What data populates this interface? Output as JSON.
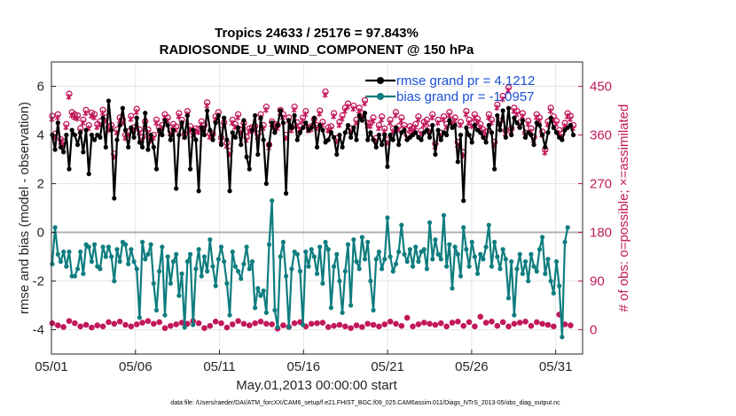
{
  "chart_data": {
    "type": "line",
    "title_line1": "Tropics 24633 / 25176 = 97.843%",
    "title_line2": "RADIOSONDE_U_WIND_COMPONENT @ 150 hPa",
    "xlabel": "May.01,2013 00:00:00 start",
    "ylabel_left": "rmse and bias (model - observation)",
    "ylabel_right": "# of obs: o=possible; ×=assimilated",
    "xlim": [
      0,
      31.6
    ],
    "ylim_left": [
      -5,
      7
    ],
    "ylim_right": [
      -45,
      495
    ],
    "x_tick_values": [
      0,
      5,
      10,
      15,
      20,
      25,
      30
    ],
    "x_tick_labels": [
      "05/01",
      "05/06",
      "05/11",
      "05/16",
      "05/21",
      "05/26",
      "05/31"
    ],
    "y_left_ticks": [
      -4,
      -2,
      0,
      2,
      4,
      6
    ],
    "y_right_ticks": [
      0,
      90,
      180,
      270,
      360,
      450
    ],
    "legend": {
      "rmse_label": "rmse grand pr = 4.1212",
      "bias_label": "bias grand pr = -1.0957"
    },
    "colors": {
      "rmse": "#000000",
      "bias": "#0f7d7f",
      "obs": "#c2185b",
      "zero_line": "#b0b0b0",
      "legend_text": "#1a4fd6"
    },
    "footnote": "data file: /Users/raeder/DAI/ATM_forcXX/CAM6_setup/f.e21.FHIST_BGC.f09_025.CAM6assim.011/Diags_NTrS_2013-05/obs_diag_output.nc",
    "rmse": [
      4.0,
      3.4,
      4.5,
      3.5,
      3.3,
      4.0,
      2.6,
      4.2,
      4.0,
      3.6,
      4.1,
      3.3,
      4.2,
      2.4,
      4.0,
      3.8,
      4.0,
      3.9,
      4.7,
      3.5,
      5.4,
      4.2,
      1.4,
      3.8,
      4.4,
      5.1,
      4.2,
      3.5,
      4.3,
      3.9,
      4.7,
      3.7,
      3.5,
      4.9,
      3.4,
      4.0,
      3.5,
      2.6,
      4.2,
      4.0,
      4.6,
      4.4,
      3.8,
      4.2,
      1.8,
      4.0,
      4.5,
      3.9,
      4.8,
      2.6,
      4.2,
      3.8,
      1.7,
      4.3,
      4.0,
      5.0,
      4.2,
      3.8,
      4.5,
      4.8,
      3.6,
      4.7,
      3.8,
      1.7,
      4.1,
      3.9,
      4.3,
      3.6,
      4.6,
      3.1,
      2.6,
      4.2,
      4.8,
      3.2,
      4.7,
      3.8,
      2.0,
      3.6,
      4.5,
      4.1,
      4.4,
      5.0,
      4.5,
      1.6,
      4.6,
      4.3,
      4.8,
      3.8,
      4.1,
      4.3,
      4.5,
      4.2,
      4.3,
      4.7,
      3.5,
      4.4,
      4.2,
      3.7,
      3.8,
      4.1,
      3.9,
      3.2,
      4.0,
      3.5,
      4.1,
      4.4,
      3.9,
      4.3,
      3.8,
      4.8,
      4.6,
      4.9,
      3.8,
      4.1,
      3.8,
      3.5,
      4.0,
      3.6,
      4.0,
      2.7,
      4.0,
      3.8,
      4.3,
      3.6,
      4.1,
      4.2,
      3.8,
      3.9,
      4.0,
      4.1,
      3.9,
      3.8,
      4.1,
      4.2,
      3.9,
      4.4,
      3.2,
      4.2,
      3.8,
      4.1,
      4.0,
      4.6,
      4.3,
      4.4,
      2.9,
      4.0,
      1.3,
      4.3,
      4.0,
      3.7,
      4.4,
      4.2,
      4.1,
      3.9,
      3.7,
      4.4,
      4.1,
      2.6,
      4.8,
      4.2,
      5.0,
      3.9,
      5.1,
      4.0,
      4.7,
      4.5,
      4.3,
      4.6,
      3.9,
      4.1,
      4.0,
      3.6,
      4.5,
      4.4,
      4.0,
      3.5,
      4.1,
      4.7,
      4.3,
      4.1,
      3.9,
      3.8,
      4.2,
      4.3,
      4.4,
      4.0
    ],
    "bias": [
      -1.3,
      0.2,
      -0.9,
      -1.2,
      -0.8,
      -1.4,
      -0.8,
      -1.8,
      -1.8,
      -1.5,
      -0.8,
      -1.7,
      -0.5,
      -0.6,
      -1.2,
      -0.5,
      -1.4,
      -1.5,
      -0.6,
      -1.0,
      -0.6,
      -1.0,
      -2.0,
      -0.7,
      -1.2,
      -0.4,
      -0.5,
      -1.3,
      -0.7,
      -1.2,
      -1.5,
      -3.5,
      -0.4,
      -1.1,
      -0.9,
      -0.5,
      -2.1,
      -3.2,
      -1.6,
      -0.6,
      -3.4,
      -1.0,
      -2.1,
      -1.2,
      -0.9,
      -2.6,
      -1.7,
      -3.9,
      -1.2,
      -0.9,
      -3.8,
      -1.5,
      -0.7,
      -1.8,
      -1.0,
      -1.6,
      -0.3,
      -1.4,
      -2.2,
      -1.1,
      -0.6,
      -1.2,
      -2.1,
      -3.4,
      -0.8,
      -1.4,
      -1.6,
      -1.9,
      -1.3,
      -0.6,
      -1.5,
      -1.2,
      -3.1,
      -2.3,
      -2.6,
      -2.4,
      -3.3,
      -0.5,
      1.3,
      -3.2,
      -3.9,
      -1.0,
      -0.4,
      -1.8,
      -3.9,
      -1.5,
      -0.8,
      -0.9,
      -1.6,
      -3.8,
      -0.8,
      -1.4,
      -0.7,
      -1.0,
      -1.7,
      -0.6,
      -2.1,
      -0.4,
      -0.7,
      -3.1,
      -1.4,
      -0.9,
      -2.0,
      -3.3,
      -1.6,
      -0.5,
      -3.0,
      -0.3,
      -1.2,
      -1.5,
      -0.2,
      -1.1,
      -0.4,
      -2.0,
      -3.2,
      -1.1,
      -0.8,
      -1.5,
      -1.1,
      0.6,
      -1.0,
      -1.6,
      -1.3,
      -0.8,
      0.3,
      -0.9,
      -1.2,
      -0.7,
      -1.4,
      -0.6,
      -1.2,
      -0.8,
      -0.7,
      -1.5,
      0.4,
      -1.1,
      -0.3,
      -0.9,
      -1.1,
      0.7,
      -1.4,
      -0.5,
      -2.3,
      -0.6,
      -0.9,
      -1.8,
      0.2,
      -0.7,
      -1.4,
      -0.4,
      -1.0,
      -1.7,
      -0.9,
      -1.1,
      -0.6,
      0.3,
      -1.4,
      -0.4,
      -1.0,
      -1.5,
      -0.7,
      -1.1,
      -2.7,
      -1.2,
      -3.4,
      -1.5,
      -0.9,
      -1.7,
      -1.2,
      -2.0,
      -0.9,
      -1.4,
      -1.6,
      -0.7,
      -0.2,
      -1.7,
      -1.1,
      -2.0,
      -2.5,
      -1.2,
      -2.2,
      -4.3,
      -0.4,
      0.2
    ],
    "obs_upper": [
      395,
      362,
      398,
      352,
      348,
      380,
      436,
      402,
      398,
      396,
      372,
      388,
      406,
      378,
      401,
      398,
      380,
      385,
      406,
      392,
      375,
      378,
      325,
      370,
      392,
      388,
      360,
      366,
      395,
      374,
      408,
      370,
      356,
      385,
      370,
      355,
      360,
      388,
      374,
      378,
      398,
      392,
      368,
      380,
      375,
      400,
      388,
      362,
      404,
      376,
      365,
      372,
      371,
      385,
      378,
      420,
      362,
      362,
      394,
      402,
      355,
      383,
      345,
      330,
      388,
      380,
      398,
      370,
      382,
      356,
      372,
      374,
      376,
      362,
      398,
      378,
      412,
      342,
      385,
      380,
      378,
      406,
      398,
      360,
      392,
      374,
      412,
      383,
      376,
      392,
      404,
      374,
      376,
      389,
      378,
      405,
      384,
      440,
      374,
      376,
      400,
      354,
      384,
      396,
      410,
      418,
      372,
      414,
      388,
      410,
      400,
      424,
      382,
      382,
      392,
      354,
      378,
      394,
      372,
      351,
      388,
      372,
      402,
      376,
      392,
      378,
      360,
      376,
      372,
      380,
      394,
      368,
      384,
      388,
      372,
      398,
      344,
      388,
      364,
      394,
      380,
      402,
      388,
      392,
      347,
      384,
      328,
      404,
      388,
      382,
      398,
      390,
      380,
      370,
      366,
      398,
      388,
      347,
      416,
      386,
      432,
      368,
      448,
      372,
      410,
      404,
      383,
      400,
      364,
      386,
      372,
      356,
      398,
      392,
      366,
      333,
      385,
      410,
      394,
      386,
      369,
      362,
      382,
      400,
      395,
      378
    ],
    "obs_lower": [
      12,
      18,
      8,
      14,
      5,
      10,
      16,
      8,
      12,
      3,
      6,
      14,
      9,
      15,
      4,
      12,
      8,
      17,
      6,
      10,
      14,
      5,
      11,
      8,
      15,
      3,
      9,
      12,
      6,
      14,
      10,
      2,
      13,
      7,
      16,
      8,
      11,
      5,
      14,
      9,
      3,
      12,
      7,
      15,
      10,
      6,
      13,
      4,
      11,
      8,
      16,
      5,
      12,
      9,
      3,
      14,
      7,
      10,
      15,
      6,
      12,
      8,
      4,
      13,
      10,
      7,
      16,
      5,
      11,
      14,
      8,
      3,
      12,
      9,
      15,
      6,
      11,
      20,
      10,
      4,
      2,
      13,
      8,
      15,
      5,
      10,
      12,
      7,
      14,
      9,
      6,
      16,
      11,
      4,
      12,
      8,
      13,
      10,
      5,
      15,
      7,
      11,
      9,
      14,
      6,
      12,
      3,
      10,
      8,
      16,
      5,
      13,
      11,
      7,
      9,
      14,
      6,
      12,
      10,
      4,
      15,
      8,
      11,
      13,
      7,
      9,
      22,
      12,
      6,
      15,
      10,
      8,
      13,
      5,
      11,
      14,
      9,
      7,
      12,
      16,
      6,
      10,
      13,
      8,
      15,
      11,
      7,
      9,
      14,
      12,
      6,
      10,
      24,
      8,
      13,
      11,
      15,
      9,
      7,
      12,
      14,
      10,
      6,
      16,
      11,
      8,
      13,
      9,
      15,
      12,
      7,
      10,
      14,
      8,
      11,
      20,
      9,
      13,
      6,
      12,
      28,
      15,
      10,
      2,
      8,
      4
    ]
  }
}
